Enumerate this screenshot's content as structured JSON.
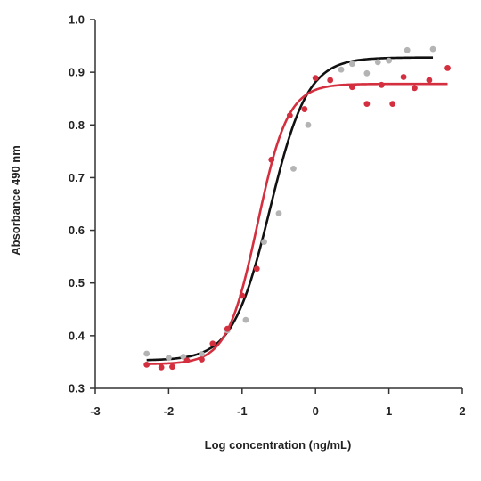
{
  "chart_data": {
    "type": "scatter",
    "xlabel": "Log concentration (ng/mL)",
    "ylabel": "Absorbance 490 nm",
    "xlim": [
      -3,
      2
    ],
    "ylim": [
      0.3,
      1.0
    ],
    "xticks": [
      -3,
      -2,
      -1,
      0,
      1,
      2
    ],
    "yticks": [
      0.3,
      0.4,
      0.5,
      0.6,
      0.7,
      0.8,
      0.9,
      1.0
    ],
    "xtick_labels": [
      "-3",
      "-2",
      "-1",
      "0",
      "1",
      "2"
    ],
    "ytick_labels": [
      "0.3",
      "0.4",
      "0.5",
      "0.6",
      "0.7",
      "0.8",
      "0.9",
      "1.0"
    ],
    "grid": false,
    "series": [
      {
        "color": "#b4b4b4",
        "curve_color": "#111111",
        "fit": {
          "bottom": 0.353,
          "top": 0.928,
          "log_ec50": -0.62,
          "hill_slope": 1.7
        },
        "points": [
          [
            -2.3,
            0.366
          ],
          [
            -2.0,
            0.358
          ],
          [
            -1.8,
            0.36
          ],
          [
            -1.55,
            0.365
          ],
          [
            -1.2,
            0.41
          ],
          [
            -0.95,
            0.43
          ],
          [
            -0.7,
            0.578
          ],
          [
            -0.5,
            0.632
          ],
          [
            -0.3,
            0.717
          ],
          [
            -0.1,
            0.8
          ],
          [
            0.35,
            0.905
          ],
          [
            0.5,
            0.916
          ],
          [
            0.7,
            0.898
          ],
          [
            0.85,
            0.919
          ],
          [
            1.0,
            0.922
          ],
          [
            1.25,
            0.942
          ],
          [
            1.6,
            0.944
          ]
        ]
      },
      {
        "color": "#d42f3f",
        "curve_color": "#d42f3f",
        "fit": {
          "bottom": 0.346,
          "top": 0.878,
          "log_ec50": -0.79,
          "hill_slope": 2.1
        },
        "points": [
          [
            -2.3,
            0.345
          ],
          [
            -2.1,
            0.34
          ],
          [
            -1.95,
            0.341
          ],
          [
            -1.75,
            0.353
          ],
          [
            -1.55,
            0.355
          ],
          [
            -1.4,
            0.385
          ],
          [
            -1.2,
            0.413
          ],
          [
            -1.0,
            0.476
          ],
          [
            -0.8,
            0.527
          ],
          [
            -0.6,
            0.734
          ],
          [
            -0.35,
            0.818
          ],
          [
            -0.15,
            0.83
          ],
          [
            0.0,
            0.889
          ],
          [
            0.2,
            0.885
          ],
          [
            0.5,
            0.872
          ],
          [
            0.7,
            0.84
          ],
          [
            0.9,
            0.876
          ],
          [
            1.05,
            0.84
          ],
          [
            1.2,
            0.891
          ],
          [
            1.35,
            0.87
          ],
          [
            1.55,
            0.885
          ],
          [
            1.8,
            0.908
          ]
        ]
      }
    ]
  }
}
